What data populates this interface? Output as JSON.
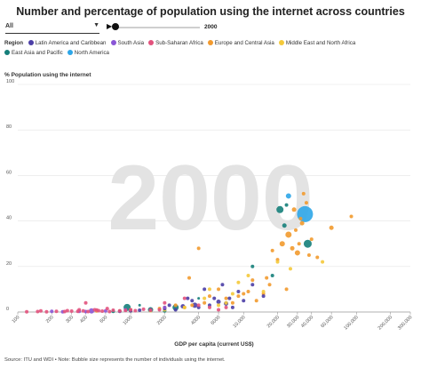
{
  "title": "Number and percentage of population using the internet across countries",
  "controls": {
    "filter_value": "All",
    "year": "2000"
  },
  "legend": {
    "title": "Region",
    "items": [
      {
        "label": "Latin America and Caribbean",
        "color": "#4b3ea6"
      },
      {
        "label": "South Asia",
        "color": "#8a56d6"
      },
      {
        "label": "Sub-Saharan Africa",
        "color": "#e2527d"
      },
      {
        "label": "Europe and Central Asia",
        "color": "#f29a2e"
      },
      {
        "label": "Middle East and North Africa",
        "color": "#f4c93a"
      },
      {
        "label": "East Asia and Pacific",
        "color": "#157f7a"
      },
      {
        "label": "North America",
        "color": "#2da6e8"
      }
    ]
  },
  "source": "Source: ITU and WDI • Note: Bubble size represents the number of individuals using the internet.",
  "chart_data": {
    "type": "scatter",
    "watermark": "2000",
    "ylabel": "% Population using the internet",
    "xlabel": "GDP per capita (current US$)",
    "xscale": "log",
    "xlim": [
      100,
      300000
    ],
    "ylim": [
      0,
      100
    ],
    "yticks": [
      0,
      20,
      40,
      60,
      80,
      100
    ],
    "xticks": [
      {
        "value": 100,
        "label": "100"
      },
      {
        "value": 200,
        "label": "200"
      },
      {
        "value": 300,
        "label": "300"
      },
      {
        "value": 400,
        "label": "400"
      },
      {
        "value": 600,
        "label": "600"
      },
      {
        "value": 1000,
        "label": "1000"
      },
      {
        "value": 2000,
        "label": "2000"
      },
      {
        "value": 4000,
        "label": "4000"
      },
      {
        "value": 6000,
        "label": "6000"
      },
      {
        "value": 10000,
        "label": "10,000"
      },
      {
        "value": 20000,
        "label": "20,000"
      },
      {
        "value": 30000,
        "label": "30,000"
      },
      {
        "value": 40000,
        "label": "40,000"
      },
      {
        "value": 60000,
        "label": "60,000"
      },
      {
        "value": 100000,
        "label": "100,000"
      },
      {
        "value": 200000,
        "label": "200,000"
      },
      {
        "value": 300000,
        "label": "300,000"
      }
    ],
    "grid": true,
    "series": [
      {
        "region": "North America",
        "points": [
          [
            35000,
            43,
            9
          ],
          [
            25000,
            51,
            3
          ]
        ]
      },
      {
        "region": "East Asia and Pacific",
        "points": [
          [
            37000,
            30,
            4.5
          ],
          [
            21000,
            45,
            4
          ],
          [
            930,
            2,
            4
          ],
          [
            1500,
            1,
            3
          ],
          [
            2500,
            2,
            3.5
          ],
          [
            23000,
            38,
            2.5
          ],
          [
            2000,
            0.5,
            2
          ],
          [
            700,
            0.3,
            2
          ],
          [
            12000,
            20,
            2
          ],
          [
            24000,
            47,
            2
          ],
          [
            4000,
            6,
            1.5
          ],
          [
            1200,
            3,
            1.5
          ],
          [
            18000,
            16,
            2
          ]
        ]
      },
      {
        "region": "Europe and Central Asia",
        "points": [
          [
            25000,
            34,
            3.5
          ],
          [
            60000,
            37,
            2.5
          ],
          [
            22000,
            30,
            3
          ],
          [
            30000,
            26,
            3
          ],
          [
            28000,
            45,
            2.5
          ],
          [
            33000,
            39,
            2.5
          ],
          [
            40000,
            32,
            2
          ],
          [
            34000,
            52,
            2
          ],
          [
            36000,
            48,
            2
          ],
          [
            32000,
            41,
            2
          ],
          [
            20000,
            23,
            2
          ],
          [
            27000,
            28,
            2.5
          ],
          [
            18000,
            27,
            2
          ],
          [
            16000,
            15,
            2
          ],
          [
            12000,
            14,
            2
          ],
          [
            11000,
            9,
            2
          ],
          [
            9000,
            7,
            2
          ],
          [
            7000,
            6,
            2
          ],
          [
            6000,
            10,
            2
          ],
          [
            5000,
            7,
            2
          ],
          [
            4500,
            4,
            2
          ],
          [
            4000,
            28,
            2
          ],
          [
            3500,
            3,
            2
          ],
          [
            3000,
            2,
            2
          ],
          [
            2500,
            3,
            2
          ],
          [
            2000,
            2,
            2
          ],
          [
            1800,
            1.5,
            2
          ],
          [
            1500,
            1,
            2
          ],
          [
            1000,
            1,
            2
          ],
          [
            800,
            0.5,
            2
          ],
          [
            500,
            0.5,
            2
          ],
          [
            13000,
            5,
            2
          ],
          [
            15000,
            8,
            2
          ],
          [
            24000,
            10,
            2
          ],
          [
            38000,
            25,
            2
          ],
          [
            90000,
            42,
            2
          ],
          [
            3300,
            15,
            2
          ],
          [
            8000,
            4,
            2
          ],
          [
            17000,
            12,
            2
          ],
          [
            10000,
            8,
            2
          ],
          [
            45000,
            24,
            2
          ],
          [
            29000,
            36,
            2
          ],
          [
            31000,
            30,
            2
          ]
        ]
      },
      {
        "region": "Middle East and North Africa",
        "points": [
          [
            9000,
            13,
            2
          ],
          [
            20000,
            22,
            2
          ],
          [
            26000,
            19,
            2
          ],
          [
            50000,
            22,
            2
          ],
          [
            15000,
            9,
            2
          ],
          [
            5000,
            10,
            2
          ],
          [
            3000,
            2,
            2
          ],
          [
            2000,
            1,
            2
          ],
          [
            1500,
            0.6,
            2
          ],
          [
            1000,
            0.5,
            2
          ],
          [
            4500,
            6,
            2
          ],
          [
            11000,
            16,
            2
          ],
          [
            6000,
            3,
            2
          ],
          [
            7000,
            4,
            2
          ],
          [
            8000,
            8,
            2
          ]
        ]
      },
      {
        "region": "Latin America and Caribbean",
        "points": [
          [
            3700,
            3,
            3
          ],
          [
            2900,
            2.5,
            2.5
          ],
          [
            6000,
            4.5,
            2.5
          ],
          [
            7000,
            3.7,
            2.5
          ],
          [
            5000,
            3,
            2
          ],
          [
            4000,
            2,
            2
          ],
          [
            3500,
            5,
            2
          ],
          [
            2500,
            1,
            2
          ],
          [
            2000,
            1.5,
            2
          ],
          [
            1500,
            1,
            2
          ],
          [
            9000,
            9,
            2
          ],
          [
            12000,
            12,
            2
          ],
          [
            15000,
            7,
            2
          ],
          [
            8000,
            2,
            2
          ],
          [
            1000,
            0.5,
            2
          ],
          [
            1200,
            0.8,
            2
          ],
          [
            6500,
            12,
            2
          ],
          [
            5500,
            6,
            2
          ],
          [
            10000,
            5,
            2
          ],
          [
            4500,
            10,
            2
          ],
          [
            2200,
            3,
            2
          ],
          [
            3200,
            6,
            2
          ],
          [
            7500,
            6,
            2
          ],
          [
            800,
            0.3,
            2
          ]
        ]
      },
      {
        "region": "South Asia",
        "points": [
          [
            450,
            0.5,
            3
          ],
          [
            200,
            0.3,
            2
          ],
          [
            400,
            0.2,
            2
          ],
          [
            600,
            0.5,
            2
          ],
          [
            900,
            1,
            2
          ],
          [
            2000,
            2,
            2
          ],
          [
            250,
            0.1,
            2
          ],
          [
            350,
            0.3,
            2
          ]
        ]
      },
      {
        "region": "Sub-Saharan Africa",
        "points": [
          [
            120,
            0.1,
            2
          ],
          [
            150,
            0.2,
            2
          ],
          [
            180,
            0.1,
            2
          ],
          [
            220,
            0.3,
            2
          ],
          [
            260,
            0.2,
            2
          ],
          [
            300,
            0.4,
            2
          ],
          [
            340,
            0.3,
            2
          ],
          [
            380,
            0.5,
            2
          ],
          [
            420,
            0.2,
            2
          ],
          [
            480,
            1,
            2
          ],
          [
            520,
            0.6,
            2
          ],
          [
            560,
            0.4,
            2
          ],
          [
            620,
            1.5,
            2
          ],
          [
            700,
            0.8,
            2
          ],
          [
            800,
            0.5,
            2
          ],
          [
            900,
            0.7,
            2
          ],
          [
            1000,
            1,
            2
          ],
          [
            1100,
            0.6,
            2
          ],
          [
            1300,
            1.2,
            2
          ],
          [
            1500,
            0.8,
            2
          ],
          [
            1800,
            1,
            2
          ],
          [
            2000,
            4,
            2
          ],
          [
            3000,
            6,
            2
          ],
          [
            4000,
            3,
            2
          ],
          [
            5000,
            2,
            2
          ],
          [
            6000,
            1,
            2
          ],
          [
            7000,
            2,
            2
          ],
          [
            400,
            4,
            2
          ],
          [
            350,
            1,
            2
          ],
          [
            275,
            0.6,
            2
          ],
          [
            160,
            0.5,
            2
          ],
          [
            500,
            0.9,
            2
          ],
          [
            650,
            0.2,
            2
          ]
        ]
      }
    ]
  }
}
